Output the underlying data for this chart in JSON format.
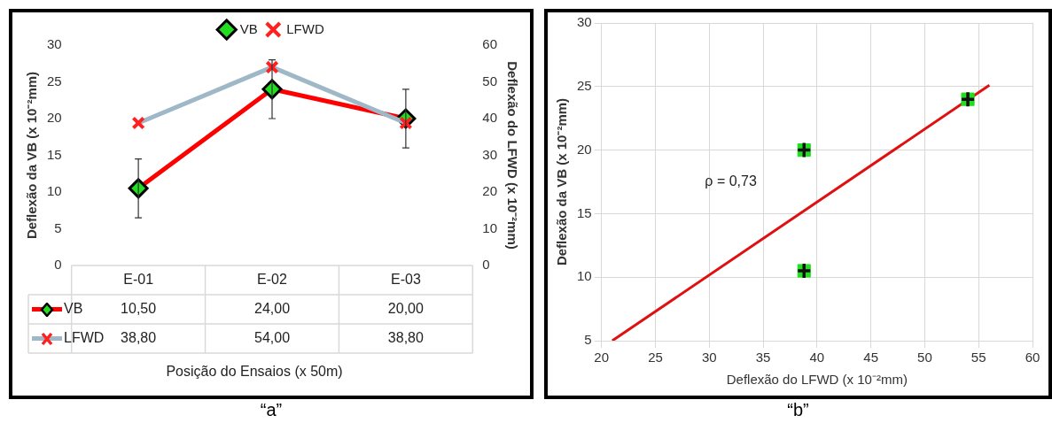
{
  "chart_data": [
    {
      "type": "line",
      "categories": [
        "E-01",
        "E-02",
        "E-03"
      ],
      "xlabel": "Posição do Ensaios (x 50m)",
      "ylabel": "Deflexão da VB (x 10⁻²mm)",
      "y2label": "Deflexão do LFWD (x 10⁻²mm)",
      "ylim": [
        0,
        30
      ],
      "yticks": [
        0,
        5,
        10,
        15,
        20,
        25,
        30
      ],
      "y2lim": [
        0,
        60
      ],
      "y2ticks": [
        0,
        10,
        20,
        30,
        40,
        50,
        60
      ],
      "legend": "top",
      "series": [
        {
          "name": "VB",
          "color": "#ff0000",
          "marker": "diamond",
          "values": [
            10.5,
            24,
            20
          ],
          "errors": [
            4,
            4,
            4
          ],
          "value_labels": [
            "10,50",
            "24,00",
            "20,00"
          ]
        },
        {
          "name": "LFWD",
          "color": "#9fb8c8",
          "marker": "cross",
          "axis": "y2",
          "values": [
            38.8,
            54,
            38.8
          ],
          "value_labels": [
            "38,80",
            "54,00",
            "38,80"
          ]
        }
      ],
      "annotations": [
        "“a”"
      ]
    },
    {
      "type": "scatter",
      "xlabel": "Deflexão do LFWD (x 10⁻²mm)",
      "ylabel": "Deflexão da VB (x 10⁻²mm)",
      "xlim": [
        20,
        60
      ],
      "xticks": [
        20,
        25,
        30,
        35,
        40,
        45,
        50,
        55,
        60
      ],
      "ylim": [
        5,
        30
      ],
      "yticks": [
        5,
        10,
        15,
        20,
        25,
        30
      ],
      "grid": true,
      "series": [
        {
          "color": "#22dd22",
          "marker": "square",
          "x": [
            38.8,
            38.8,
            54
          ],
          "values": [
            20,
            10.5,
            24
          ]
        },
        {
          "type": "line",
          "color": "#e01010",
          "x": [
            21,
            56
          ],
          "values": [
            5,
            25.1
          ]
        }
      ],
      "annotations": [
        "ρ = 0,73",
        "“b”"
      ]
    }
  ]
}
